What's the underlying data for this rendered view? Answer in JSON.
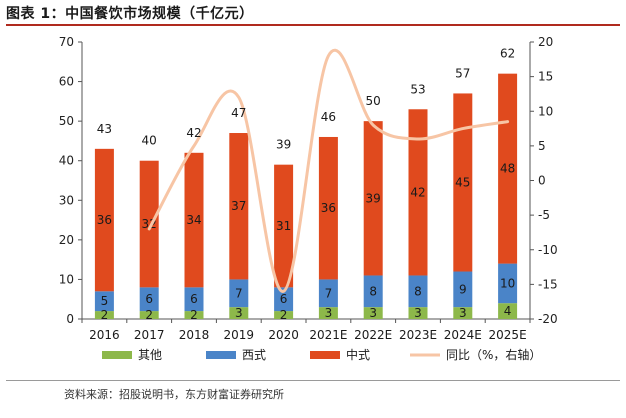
{
  "figure": {
    "title": "图表 1：中国餐饮市场规模（千亿元）",
    "source": "资料来源：招股说明书，东方财富证券研究所"
  },
  "colors": {
    "other": "#8db84a",
    "west": "#4a84c8",
    "china": "#e04a1e",
    "yoy": "#f7c5a5",
    "title_rule": "#b02a1e"
  },
  "chart_data": {
    "type": "bar",
    "stacked": true,
    "categories": [
      "2016",
      "2017",
      "2018",
      "2019",
      "2020",
      "2021E",
      "2022E",
      "2023E",
      "2024E",
      "2025E"
    ],
    "series": [
      {
        "name": "其他",
        "values": [
          2,
          2,
          2,
          3,
          2,
          3,
          3,
          3,
          3,
          4
        ],
        "color_key": "other"
      },
      {
        "name": "西式",
        "values": [
          5,
          6,
          6,
          7,
          6,
          7,
          8,
          8,
          9,
          10
        ],
        "color_key": "west"
      },
      {
        "name": "中式",
        "values": [
          36,
          32,
          34,
          37,
          31,
          36,
          39,
          42,
          45,
          48
        ],
        "color_key": "china"
      }
    ],
    "totals": [
      43,
      40,
      42,
      47,
      39,
      46,
      50,
      53,
      57,
      62
    ],
    "line_series": {
      "name": "同比（%，右轴）",
      "values": [
        null,
        -7,
        5,
        12,
        -16,
        18,
        8,
        6,
        7.5,
        8.5
      ],
      "axis": "right",
      "smooth": true
    },
    "y_left": {
      "min": 0,
      "max": 70,
      "ticks": [
        0,
        10,
        20,
        30,
        40,
        50,
        60,
        70
      ]
    },
    "y_right": {
      "min": -20,
      "max": 20,
      "ticks": [
        -20,
        -15,
        -10,
        -5,
        0,
        5,
        10,
        15,
        20
      ]
    },
    "grid": false,
    "legend_position": "bottom"
  }
}
